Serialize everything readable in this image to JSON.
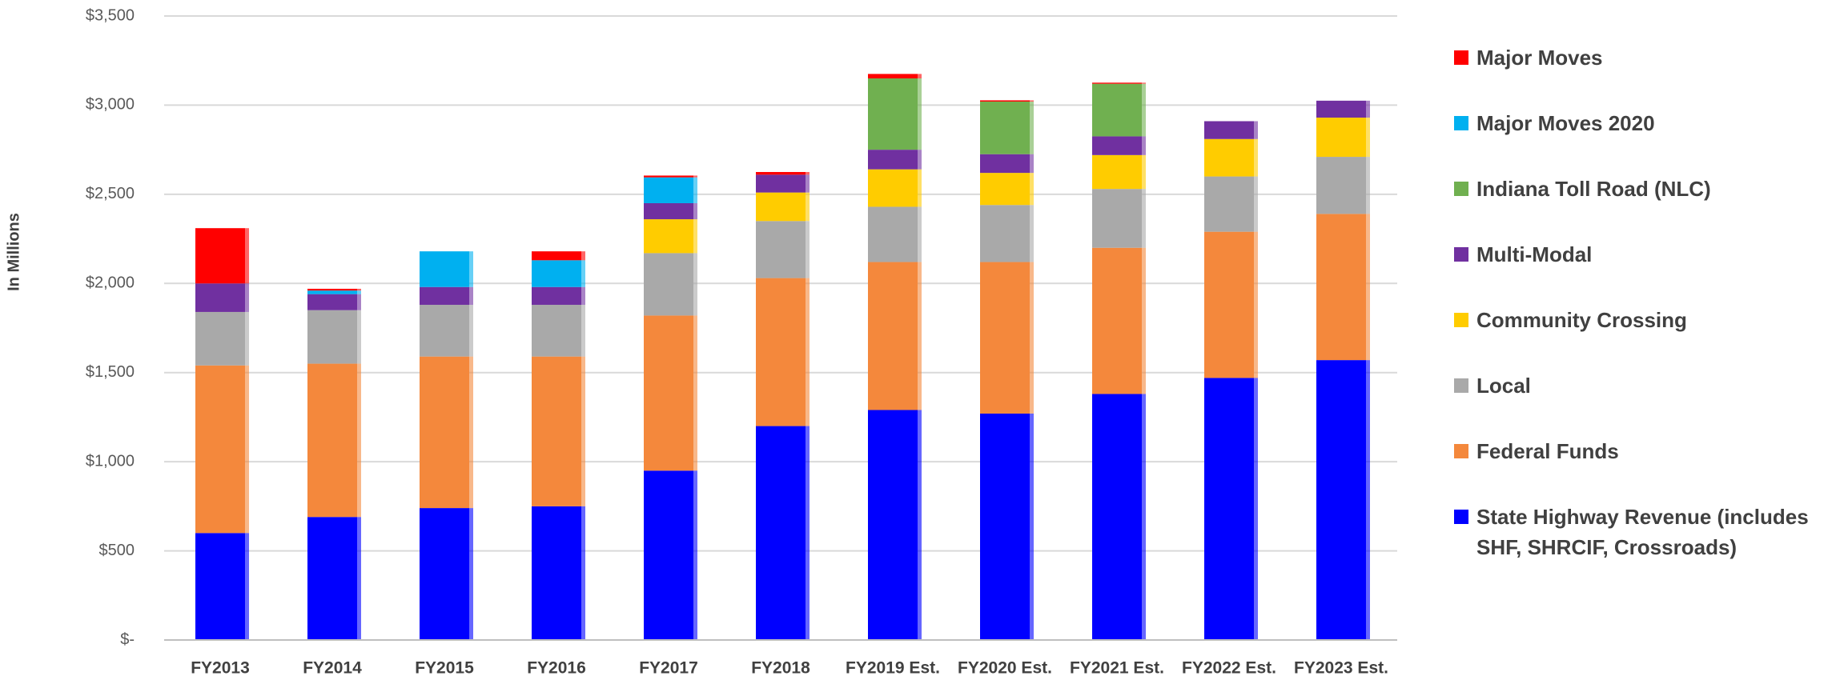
{
  "chart_data": {
    "type": "stacked-bar",
    "y_label": "In Millions",
    "categories": [
      "FY2013",
      "FY2014",
      "FY2015",
      "FY2016",
      "FY2017",
      "FY2018",
      "FY2019 Est.",
      "FY2020 Est.",
      "FY2021 Est.",
      "FY2022 Est.",
      "FY2023 Est."
    ],
    "series": [
      {
        "name": "State Highway Revenue (includes SHF, SHRCIF, Crossroads)",
        "color": "#0000ff",
        "values": [
          600,
          690,
          740,
          750,
          950,
          1200,
          1290,
          1270,
          1380,
          1470,
          1570
        ]
      },
      {
        "name": "Federal Funds",
        "color": "#f4883c",
        "values": [
          940,
          860,
          850,
          840,
          870,
          830,
          830,
          850,
          820,
          820,
          820
        ]
      },
      {
        "name": "Local",
        "color": "#a9a9a9",
        "values": [
          300,
          300,
          290,
          290,
          350,
          320,
          310,
          320,
          330,
          310,
          320
        ]
      },
      {
        "name": "Community Crossing",
        "color": "#ffcc00",
        "values": [
          0,
          0,
          0,
          0,
          190,
          160,
          210,
          180,
          190,
          210,
          220
        ]
      },
      {
        "name": "Multi-Modal",
        "color": "#7030a0",
        "values": [
          160,
          90,
          100,
          100,
          90,
          100,
          110,
          105,
          105,
          100,
          95
        ]
      },
      {
        "name": "Indiana Toll Road (NLC)",
        "color": "#70b050",
        "values": [
          0,
          0,
          0,
          0,
          0,
          0,
          400,
          295,
          295,
          0,
          0
        ]
      },
      {
        "name": "Major Moves 2020",
        "color": "#00b0f0",
        "values": [
          0,
          20,
          200,
          150,
          145,
          0,
          0,
          0,
          0,
          0,
          0
        ]
      },
      {
        "name": "Major Moves",
        "color": "#ff0000",
        "values": [
          310,
          10,
          0,
          50,
          10,
          15,
          25,
          7,
          6,
          0,
          0
        ]
      }
    ],
    "ylim": [
      0,
      3500
    ],
    "yticks": [
      {
        "value": 0,
        "label": "$-"
      },
      {
        "value": 500,
        "label": "$500"
      },
      {
        "value": 1000,
        "label": "$1,000"
      },
      {
        "value": 1500,
        "label": "$1,500"
      },
      {
        "value": 2000,
        "label": "$2,000"
      },
      {
        "value": 2500,
        "label": "$2,500"
      },
      {
        "value": 3000,
        "label": "$3,000"
      },
      {
        "value": 3500,
        "label": "$3,500"
      }
    ],
    "grid": true,
    "legend": "right"
  }
}
